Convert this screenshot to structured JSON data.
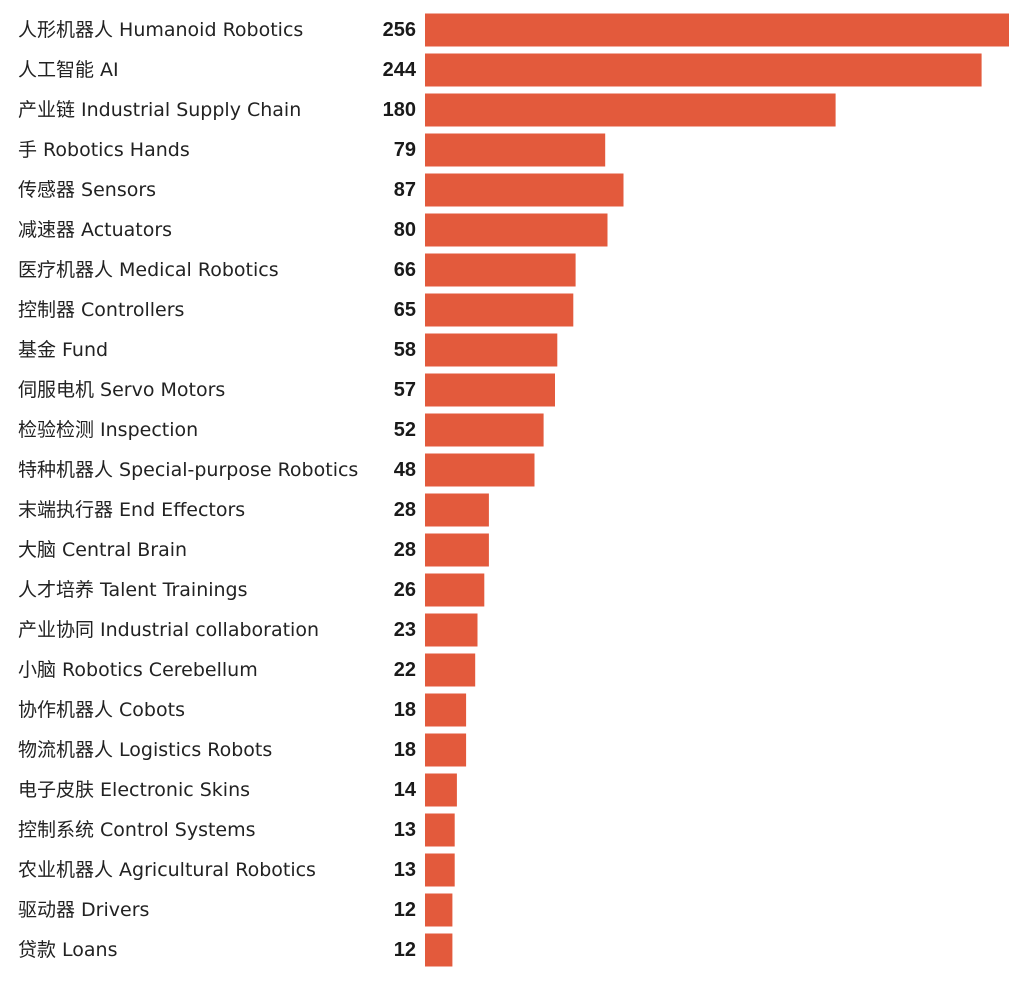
{
  "chart_data": {
    "type": "bar",
    "orientation": "horizontal",
    "bar_color": "#e35a3c",
    "categories": [
      "人形机器人 Humanoid Robotics",
      "人工智能 AI",
      "产业链 Industrial Supply Chain",
      "手 Robotics Hands",
      "传感器 Sensors",
      "减速器 Actuators",
      "医疗机器人 Medical Robotics",
      "控制器 Controllers",
      "基金 Fund",
      "伺服电机 Servo Motors",
      "检验检测 Inspection",
      "特种机器人 Special-purpose Robotics",
      "末端执行器 End Effectors",
      "大脑 Central Brain",
      "人才培养 Talent Trainings",
      "产业协同 Industrial collaboration",
      "小脑 Robotics Cerebellum",
      "协作机器人 Cobots",
      "物流机器人 Logistics Robots",
      "电子皮肤 Electronic Skins",
      "控制系统 Control Systems",
      "农业机器人 Agricultural Robotics",
      "驱动器 Drivers",
      "贷款 Loans"
    ],
    "values": [
      256,
      244,
      180,
      79,
      87,
      80,
      66,
      65,
      58,
      57,
      52,
      48,
      28,
      28,
      26,
      23,
      22,
      18,
      18,
      14,
      13,
      13,
      12,
      12
    ],
    "value_labels": [
      "256",
      "244",
      "180",
      "79",
      "87",
      "80",
      "66",
      "65",
      "58",
      "57",
      "52",
      "48",
      "28",
      "28",
      "26",
      "23",
      "22",
      "18",
      "18",
      "14",
      "13",
      "13",
      "12",
      "12"
    ],
    "xlim": [
      0,
      256
    ],
    "grid": false,
    "legend": "none",
    "title": "",
    "xlabel": "",
    "ylabel": ""
  }
}
